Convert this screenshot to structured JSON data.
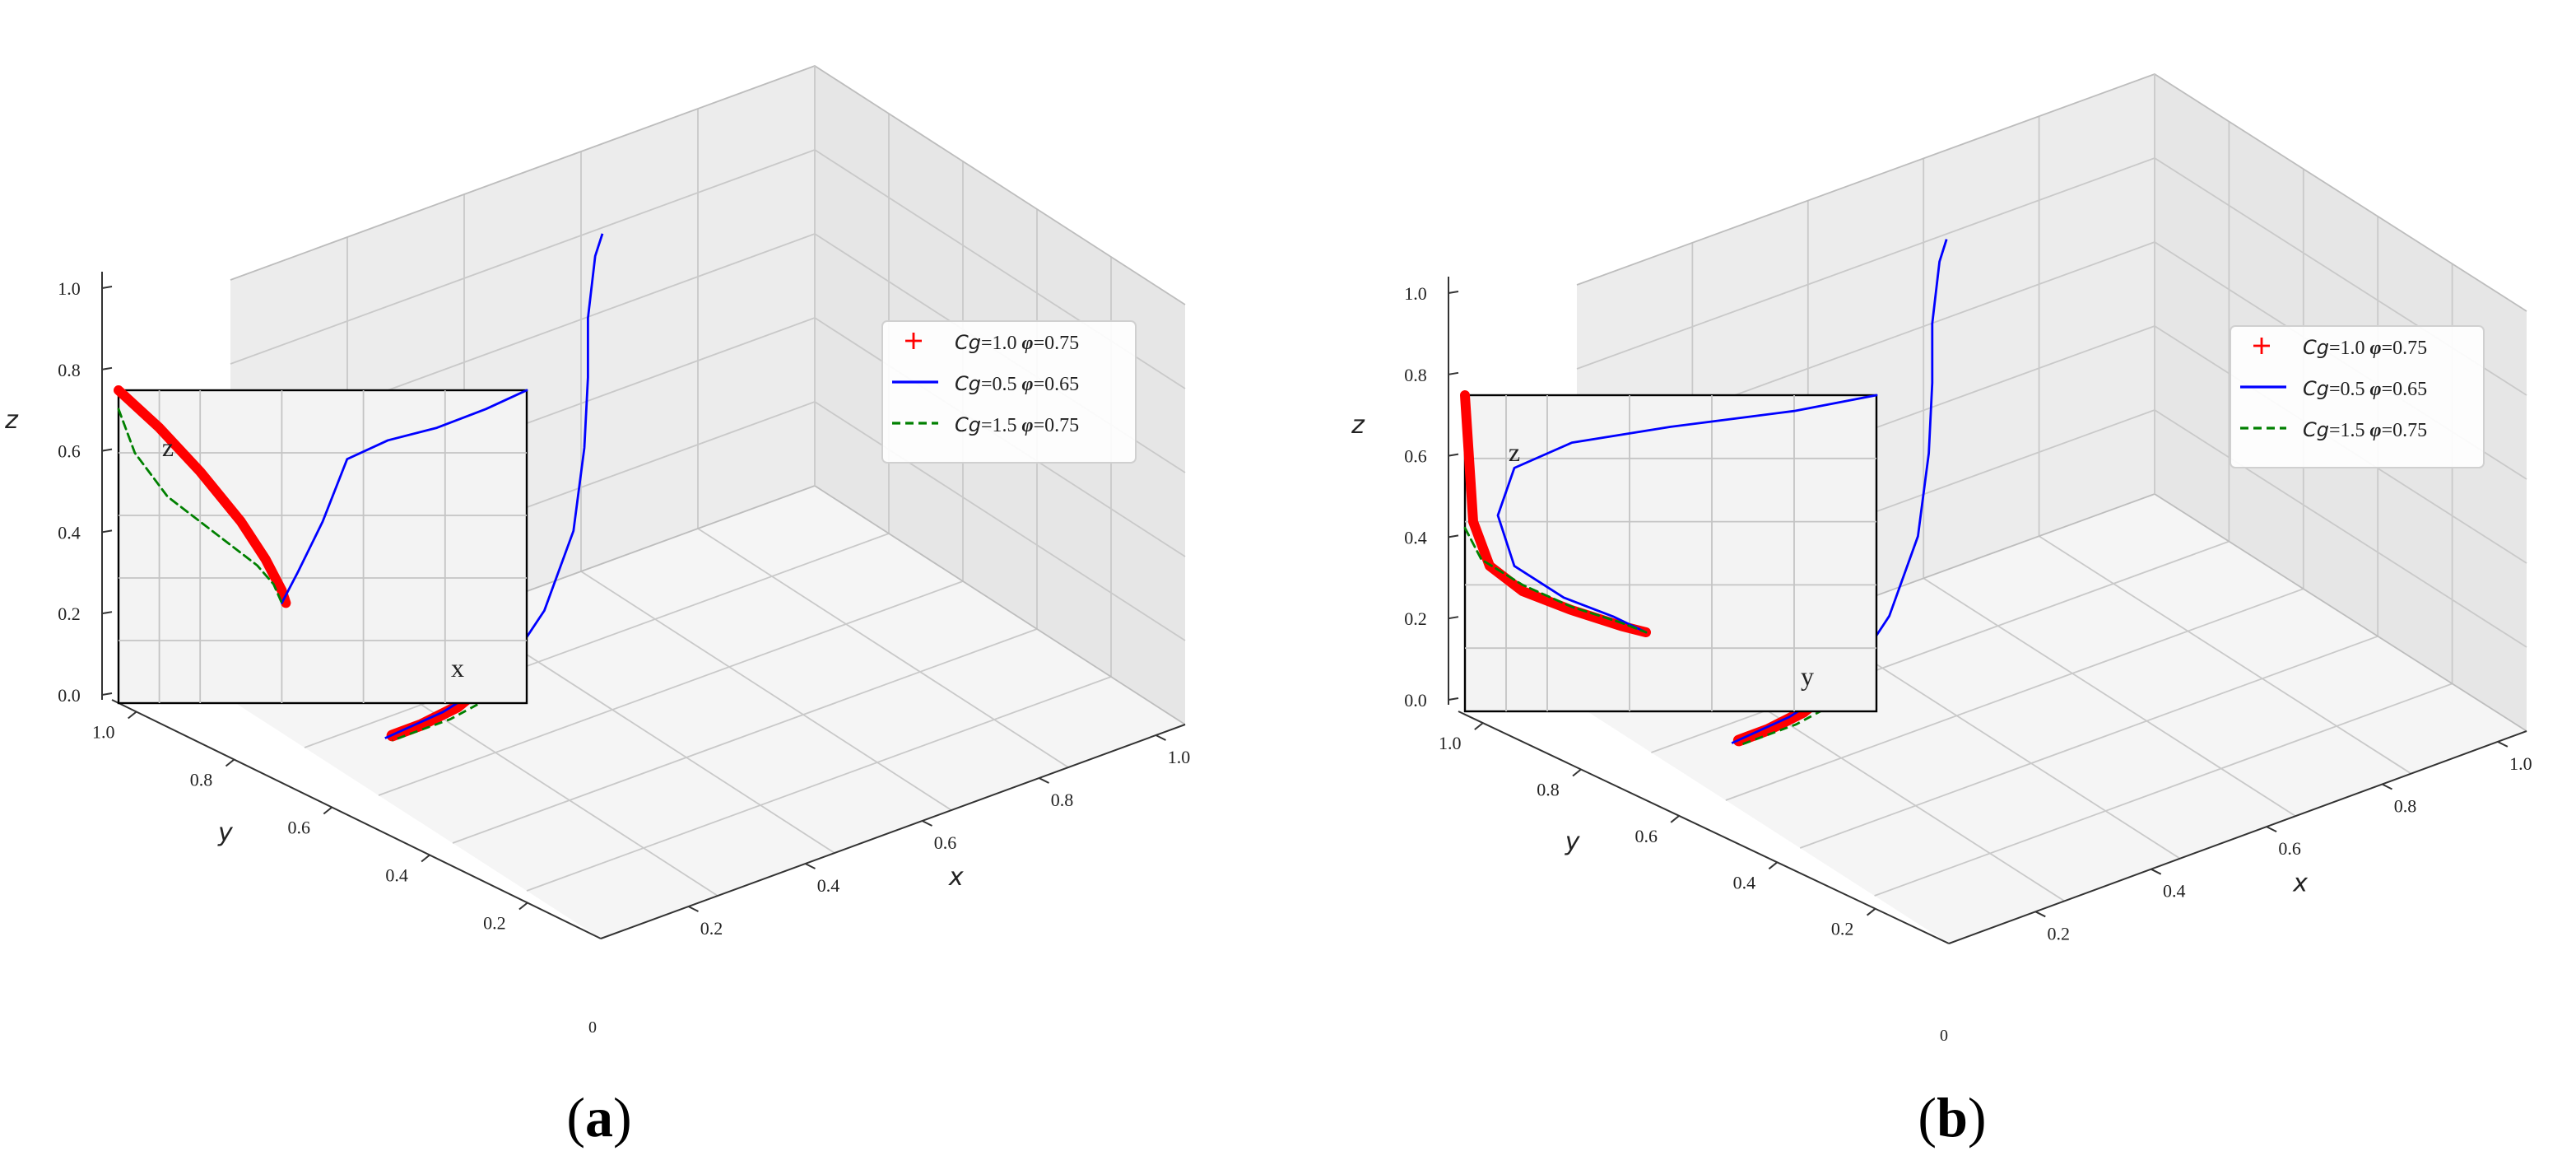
{
  "figure": {
    "panel_labels": [
      "(a)",
      "(b)"
    ]
  },
  "chart_data": [
    {
      "type": "line",
      "projection": "3d",
      "panel": "(a)",
      "xlabel": "x",
      "ylabel": "y",
      "zlabel": "z",
      "x_ticks": [
        "0.2",
        "0.4",
        "0.6",
        "0.8",
        "1.0"
      ],
      "y_ticks": [
        "0.2",
        "0.4",
        "0.6",
        "0.8",
        "1.0"
      ],
      "z_ticks": [
        "0.0",
        "0.2",
        "0.4",
        "0.6",
        "0.8",
        "1.0"
      ],
      "origin_tick": "0",
      "xlim": [
        0,
        1
      ],
      "ylim": [
        0,
        1
      ],
      "zlim": [
        0,
        1
      ],
      "grid": true,
      "legend": {
        "position": "center-right",
        "entries": [
          {
            "prefix": "Cg",
            "rest": "=1.0 ",
            "phi": "φ",
            "tail": "=0.75",
            "color": "#ff0000",
            "marker": "+"
          },
          {
            "prefix": "Cg",
            "rest": "=0.5 ",
            "phi": "φ",
            "tail": "=0.65",
            "color": "#0000ff",
            "line": "solid"
          },
          {
            "prefix": "Cg",
            "rest": "=1.5 ",
            "phi": "φ",
            "tail": "=0.75",
            "color": "#008000",
            "line": "dashed"
          }
        ]
      },
      "series": [
        {
          "name": "Cg=1.0 φ=0.75",
          "color": "#ff0000",
          "x": [
            0.0,
            0.05,
            0.12,
            0.2,
            0.26,
            0.3,
            0.28,
            0.22,
            0.12,
            0.04
          ],
          "y": [
            0.0,
            0.0,
            0.0,
            0.0,
            0.0,
            0.0,
            0.0,
            0.0,
            0.0,
            0.0
          ],
          "z": [
            0.52,
            0.46,
            0.38,
            0.3,
            0.24,
            0.19,
            0.17,
            0.15,
            0.14,
            0.14
          ]
        },
        {
          "name": "Cg=0.5 φ=0.65",
          "color": "#0000ff",
          "x": [
            0.02,
            0.18,
            0.34,
            0.46,
            0.54,
            0.57,
            0.58,
            0.58,
            0.6,
            0.62
          ],
          "y": [
            0.0,
            0.0,
            0.0,
            0.0,
            0.0,
            0.0,
            0.0,
            0.0,
            0.0,
            0.0
          ],
          "z": [
            0.14,
            0.15,
            0.18,
            0.28,
            0.42,
            0.58,
            0.72,
            0.84,
            0.96,
            1.0
          ]
        },
        {
          "name": "Cg=1.5 φ=0.75",
          "color": "#008000",
          "x": [
            0.0,
            0.01,
            0.04,
            0.09,
            0.16,
            0.24,
            0.28,
            0.2,
            0.1,
            0.04
          ],
          "y": [
            0.0,
            0.0,
            0.0,
            0.0,
            0.0,
            0.0,
            0.0,
            0.0,
            0.0,
            0.0
          ],
          "z": [
            0.52,
            0.45,
            0.37,
            0.28,
            0.21,
            0.16,
            0.14,
            0.13,
            0.13,
            0.13
          ]
        }
      ],
      "inset": {
        "axis_label_vertical": "z",
        "axis_label_horizontal": "x",
        "series": [
          {
            "color": "#ff0000",
            "h": [
              0.0,
              0.1,
              0.2,
              0.3,
              0.36,
              0.4,
              0.41
            ],
            "v": [
              1.0,
              0.88,
              0.74,
              0.58,
              0.46,
              0.36,
              0.32
            ]
          },
          {
            "color": "#0000ff",
            "h": [
              0.4,
              0.44,
              0.5,
              0.56,
              0.66,
              0.78,
              0.9,
              1.0
            ],
            "v": [
              0.32,
              0.42,
              0.58,
              0.78,
              0.84,
              0.88,
              0.94,
              1.0
            ]
          },
          {
            "color": "#008000",
            "h": [
              0.0,
              0.04,
              0.12,
              0.24,
              0.34,
              0.38,
              0.4
            ],
            "v": [
              0.94,
              0.8,
              0.66,
              0.54,
              0.44,
              0.38,
              0.32
            ]
          }
        ]
      }
    },
    {
      "type": "line",
      "projection": "3d",
      "panel": "(b)",
      "xlabel": "x",
      "ylabel": "y",
      "zlabel": "z",
      "x_ticks": [
        "0.2",
        "0.4",
        "0.6",
        "0.8",
        "1.0"
      ],
      "y_ticks": [
        "0.2",
        "0.4",
        "0.6",
        "0.8",
        "1.0"
      ],
      "z_ticks": [
        "0.0",
        "0.2",
        "0.4",
        "0.6",
        "0.8",
        "1.0"
      ],
      "origin_tick": "0",
      "xlim": [
        0,
        1
      ],
      "ylim": [
        0,
        1
      ],
      "zlim": [
        0,
        1
      ],
      "grid": true,
      "legend": {
        "position": "center-right",
        "entries": [
          {
            "prefix": "Cg",
            "rest": "=1.0 ",
            "phi": "φ",
            "tail": "=0.75",
            "color": "#ff0000",
            "marker": "+"
          },
          {
            "prefix": "Cg",
            "rest": "=0.5 ",
            "phi": "φ",
            "tail": "=0.65",
            "color": "#0000ff",
            "line": "solid"
          },
          {
            "prefix": "Cg",
            "rest": "=1.5 ",
            "phi": "φ",
            "tail": "=0.75",
            "color": "#008000",
            "line": "dashed"
          }
        ]
      },
      "series": [
        {
          "name": "Cg=1.0 φ=0.75",
          "color": "#ff0000",
          "x": [
            0.0,
            0.05,
            0.12,
            0.2,
            0.26,
            0.3,
            0.28,
            0.22,
            0.12,
            0.04
          ],
          "y": [
            0.0,
            0.0,
            0.0,
            0.0,
            0.0,
            0.0,
            0.0,
            0.0,
            0.0,
            0.0
          ],
          "z": [
            0.52,
            0.46,
            0.38,
            0.3,
            0.24,
            0.19,
            0.17,
            0.15,
            0.14,
            0.14
          ]
        },
        {
          "name": "Cg=0.5 φ=0.65",
          "color": "#0000ff",
          "x": [
            0.02,
            0.18,
            0.34,
            0.46,
            0.54,
            0.57,
            0.58,
            0.58,
            0.6,
            0.62
          ],
          "y": [
            0.0,
            0.0,
            0.0,
            0.0,
            0.0,
            0.0,
            0.0,
            0.0,
            0.0,
            0.0
          ],
          "z": [
            0.14,
            0.15,
            0.18,
            0.28,
            0.42,
            0.58,
            0.72,
            0.84,
            0.96,
            1.0
          ]
        },
        {
          "name": "Cg=1.5 φ=0.75",
          "color": "#008000",
          "x": [
            0.0,
            0.01,
            0.04,
            0.09,
            0.16,
            0.24,
            0.28,
            0.2,
            0.1,
            0.04
          ],
          "y": [
            0.0,
            0.0,
            0.0,
            0.0,
            0.0,
            0.0,
            0.0,
            0.0,
            0.0,
            0.0
          ],
          "z": [
            0.52,
            0.45,
            0.37,
            0.28,
            0.21,
            0.16,
            0.14,
            0.13,
            0.13,
            0.13
          ]
        }
      ],
      "inset": {
        "axis_label_vertical": "z",
        "axis_label_horizontal": "y",
        "series": [
          {
            "color": "#ff0000",
            "h": [
              0.0,
              0.01,
              0.02,
              0.06,
              0.14,
              0.26,
              0.38,
              0.44
            ],
            "v": [
              1.0,
              0.8,
              0.6,
              0.46,
              0.38,
              0.32,
              0.27,
              0.25
            ]
          },
          {
            "color": "#0000ff",
            "h": [
              1.0,
              0.8,
              0.5,
              0.26,
              0.12,
              0.08,
              0.12,
              0.24,
              0.36,
              0.44
            ],
            "v": [
              1.0,
              0.95,
              0.9,
              0.85,
              0.77,
              0.62,
              0.46,
              0.36,
              0.3,
              0.25
            ]
          },
          {
            "color": "#008000",
            "h": [
              0.0,
              0.04,
              0.14,
              0.26,
              0.38,
              0.44
            ],
            "v": [
              0.58,
              0.48,
              0.4,
              0.33,
              0.28,
              0.25
            ]
          }
        ]
      }
    }
  ]
}
